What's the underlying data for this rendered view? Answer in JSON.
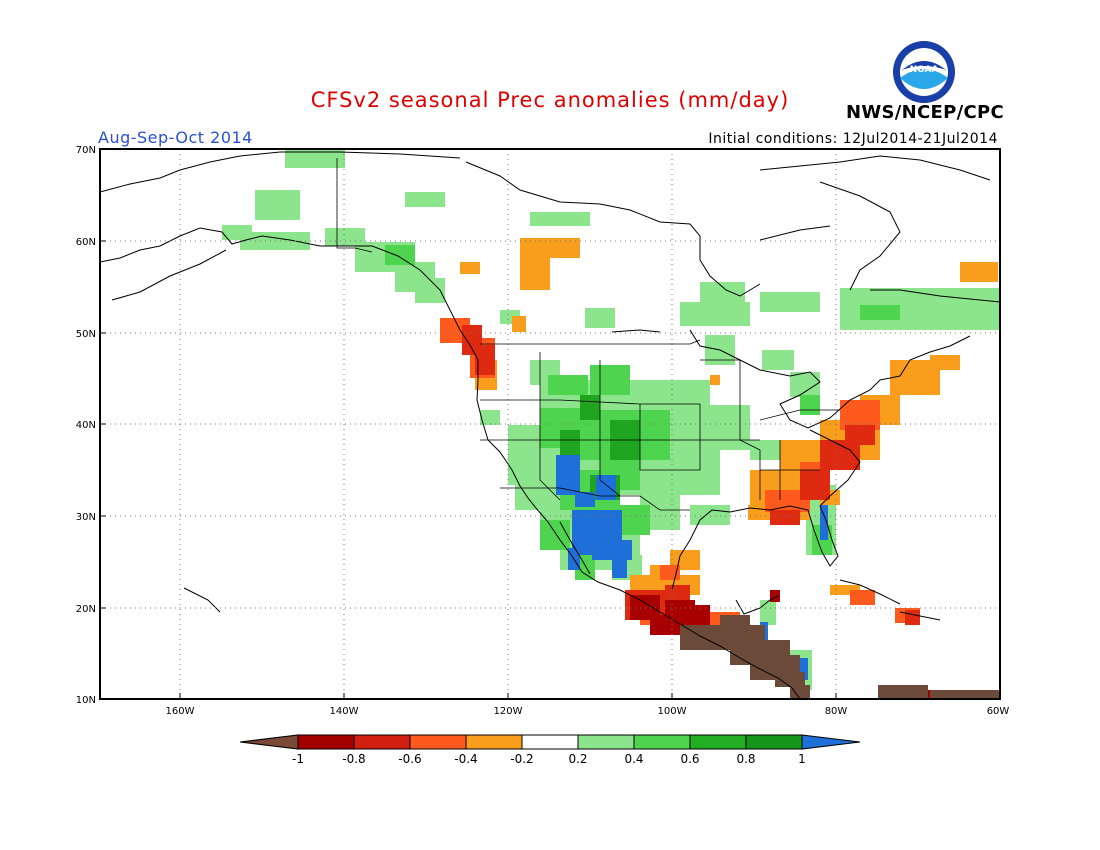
{
  "header": {
    "title": "CFSv2 seasonal Prec anomalies (mm/day)",
    "period": "Aug-Sep-Oct 2014",
    "initial_conditions": "Initial conditions: 12Jul2014-21Jul2014",
    "agency": "NWS/NCEP/CPC",
    "logo_text": "NOAA"
  },
  "axes": {
    "lat_labels": [
      "70N",
      "60N",
      "50N",
      "40N",
      "30N",
      "20N",
      "10N"
    ],
    "lon_labels": [
      "160W",
      "140W",
      "120W",
      "100W",
      "80W",
      "60W"
    ]
  },
  "colorbar": {
    "labels": [
      "-1",
      "-0.8",
      "-0.6",
      "-0.4",
      "-0.2",
      "0.2",
      "0.4",
      "0.6",
      "0.8",
      "1"
    ],
    "colors": [
      "#7b4a36",
      "#a50000",
      "#d12010",
      "#ff5a1e",
      "#f99d1c",
      "#ffffff",
      "#8ce48c",
      "#4ed44e",
      "#23ad23",
      "#13961a",
      "#1f6fd8"
    ]
  },
  "legend_palette": {
    "brown": "#6b4a3a",
    "darkred": "#a80000",
    "red": "#dd2a10",
    "orangered": "#ff5a1e",
    "orange": "#f99d1c",
    "lightgreen": "#8ce48c",
    "green": "#4ed44e",
    "darkgreen": "#1fa51f",
    "blue": "#1f6fd8"
  }
}
